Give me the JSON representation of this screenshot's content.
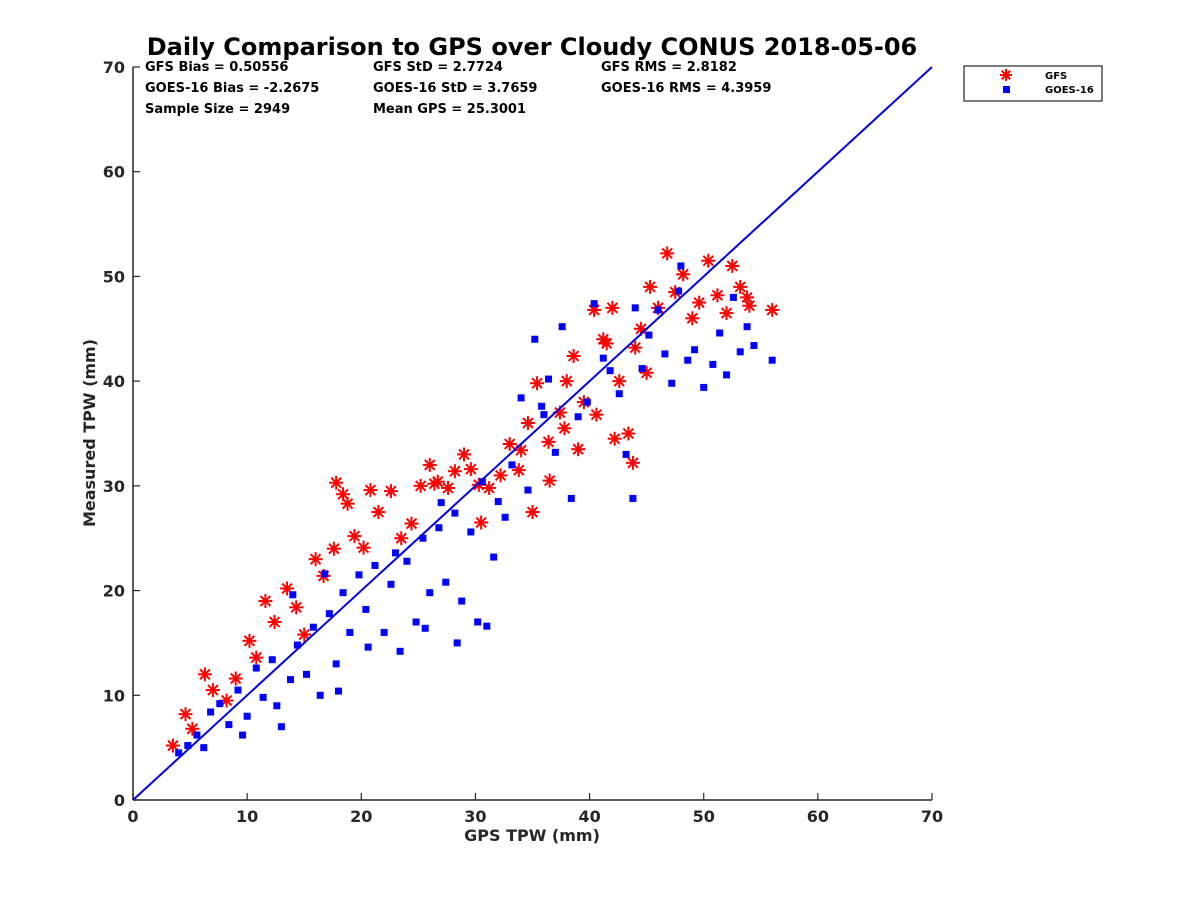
{
  "chart_data": {
    "type": "scatter",
    "title": "Daily Comparison to GPS over Cloudy CONUS 2018-05-06",
    "xlabel": "GPS TPW (mm)",
    "ylabel": "Measured TPW (mm)",
    "xlim": [
      0,
      70
    ],
    "ylim": [
      0,
      70
    ],
    "xticks": [
      0,
      10,
      20,
      30,
      40,
      50,
      60,
      70
    ],
    "yticks": [
      0,
      10,
      20,
      30,
      40,
      50,
      60,
      70
    ],
    "grid": false,
    "legend_position": "top-right",
    "stats": [
      [
        "GFS Bias = 0.50556",
        "GFS StD = 2.7724",
        "GFS RMS = 2.8182"
      ],
      [
        "GOES-16 Bias = -2.2675",
        "GOES-16 StD = 3.7659",
        "GOES-16 RMS = 4.3959"
      ],
      [
        "Sample Size = 2949",
        "Mean GPS = 25.3001"
      ]
    ],
    "reference_line": {
      "x": [
        0,
        70
      ],
      "y": [
        0,
        70
      ],
      "color": "#0000dd"
    },
    "series": [
      {
        "name": "GFS",
        "marker": "asterisk",
        "color": "#ff0000",
        "points": [
          [
            3.5,
            5.2
          ],
          [
            4.6,
            8.2
          ],
          [
            5.2,
            6.8
          ],
          [
            6.3,
            12.0
          ],
          [
            7.0,
            10.5
          ],
          [
            8.2,
            9.5
          ],
          [
            9.0,
            11.6
          ],
          [
            10.2,
            15.2
          ],
          [
            10.8,
            13.6
          ],
          [
            11.6,
            19.0
          ],
          [
            12.4,
            17.0
          ],
          [
            13.5,
            20.2
          ],
          [
            14.3,
            18.4
          ],
          [
            15.0,
            15.8
          ],
          [
            16.0,
            23.0
          ],
          [
            16.7,
            21.4
          ],
          [
            17.6,
            24.0
          ],
          [
            17.8,
            30.3
          ],
          [
            18.4,
            29.2
          ],
          [
            18.8,
            28.3
          ],
          [
            19.4,
            25.2
          ],
          [
            20.2,
            24.1
          ],
          [
            20.8,
            29.6
          ],
          [
            21.5,
            27.5
          ],
          [
            22.6,
            29.5
          ],
          [
            23.5,
            25.0
          ],
          [
            24.4,
            26.4
          ],
          [
            25.2,
            30.0
          ],
          [
            26.0,
            32.0
          ],
          [
            26.7,
            30.4
          ],
          [
            27.6,
            29.8
          ],
          [
            28.2,
            31.4
          ],
          [
            29.0,
            33.0
          ],
          [
            29.6,
            31.6
          ],
          [
            30.3,
            30.1
          ],
          [
            30.5,
            26.5
          ],
          [
            31.2,
            29.8
          ],
          [
            32.2,
            31.0
          ],
          [
            33.0,
            34.0
          ],
          [
            34.0,
            33.4
          ],
          [
            34.6,
            36.0
          ],
          [
            35.0,
            27.5
          ],
          [
            35.4,
            39.8
          ],
          [
            36.4,
            34.2
          ],
          [
            37.4,
            37.0
          ],
          [
            38.0,
            40.0
          ],
          [
            38.6,
            42.4
          ],
          [
            39.5,
            38.0
          ],
          [
            40.4,
            46.8
          ],
          [
            41.2,
            44.0
          ],
          [
            42.0,
            47.0
          ],
          [
            42.6,
            40.0
          ],
          [
            43.4,
            35.0
          ],
          [
            43.8,
            32.2
          ],
          [
            44.5,
            45.0
          ],
          [
            45.3,
            49.0
          ],
          [
            46.0,
            47.0
          ],
          [
            46.8,
            52.2
          ],
          [
            47.5,
            48.5
          ],
          [
            48.2,
            50.2
          ],
          [
            49.0,
            46.0
          ],
          [
            49.6,
            47.5
          ],
          [
            50.4,
            51.5
          ],
          [
            51.2,
            48.2
          ],
          [
            52.0,
            46.5
          ],
          [
            52.5,
            51.0
          ],
          [
            53.2,
            49.0
          ],
          [
            53.8,
            48.0
          ],
          [
            54.0,
            47.2
          ],
          [
            56.0,
            46.8
          ],
          [
            45.0,
            40.8
          ],
          [
            44.0,
            43.2
          ],
          [
            40.6,
            36.8
          ],
          [
            39.0,
            33.5
          ],
          [
            36.5,
            30.5
          ],
          [
            33.8,
            31.5
          ],
          [
            37.8,
            35.5
          ],
          [
            41.5,
            43.6
          ],
          [
            42.2,
            34.5
          ],
          [
            26.4,
            30.2
          ]
        ]
      },
      {
        "name": "GOES-16",
        "marker": "square",
        "color": "#0000ff",
        "points": [
          [
            4.0,
            4.5
          ],
          [
            4.8,
            5.2
          ],
          [
            5.6,
            6.2
          ],
          [
            6.2,
            5.0
          ],
          [
            6.8,
            8.4
          ],
          [
            7.6,
            9.2
          ],
          [
            8.4,
            7.2
          ],
          [
            9.2,
            10.5
          ],
          [
            10.0,
            8.0
          ],
          [
            10.8,
            12.6
          ],
          [
            11.4,
            9.8
          ],
          [
            12.2,
            13.4
          ],
          [
            13.0,
            7.0
          ],
          [
            13.8,
            11.5
          ],
          [
            14.4,
            14.8
          ],
          [
            15.2,
            12.0
          ],
          [
            15.8,
            16.5
          ],
          [
            16.4,
            10.0
          ],
          [
            17.2,
            17.8
          ],
          [
            17.8,
            13.0
          ],
          [
            18.4,
            19.8
          ],
          [
            19.0,
            16.0
          ],
          [
            19.8,
            21.5
          ],
          [
            20.4,
            18.2
          ],
          [
            21.2,
            22.4
          ],
          [
            22.0,
            16.0
          ],
          [
            22.6,
            20.6
          ],
          [
            23.4,
            14.2
          ],
          [
            24.0,
            22.8
          ],
          [
            24.8,
            17.0
          ],
          [
            25.4,
            25.0
          ],
          [
            26.0,
            19.8
          ],
          [
            26.8,
            26.0
          ],
          [
            27.4,
            20.8
          ],
          [
            28.2,
            27.4
          ],
          [
            28.8,
            19.0
          ],
          [
            29.6,
            25.6
          ],
          [
            30.2,
            17.0
          ],
          [
            31.0,
            16.6
          ],
          [
            32.0,
            28.5
          ],
          [
            32.6,
            27.0
          ],
          [
            33.2,
            32.0
          ],
          [
            34.0,
            38.4
          ],
          [
            34.6,
            29.6
          ],
          [
            35.2,
            44.0
          ],
          [
            35.8,
            37.6
          ],
          [
            36.4,
            40.2
          ],
          [
            37.0,
            33.2
          ],
          [
            37.6,
            45.2
          ],
          [
            38.4,
            28.8
          ],
          [
            39.0,
            36.6
          ],
          [
            39.8,
            38.0
          ],
          [
            40.4,
            47.4
          ],
          [
            41.2,
            42.2
          ],
          [
            41.8,
            41.0
          ],
          [
            42.6,
            38.8
          ],
          [
            43.2,
            33.0
          ],
          [
            43.8,
            28.8
          ],
          [
            44.6,
            41.2
          ],
          [
            45.2,
            44.4
          ],
          [
            46.0,
            46.8
          ],
          [
            46.6,
            42.6
          ],
          [
            47.2,
            39.8
          ],
          [
            47.8,
            48.6
          ],
          [
            48.6,
            42.0
          ],
          [
            49.2,
            43.0
          ],
          [
            50.0,
            39.4
          ],
          [
            50.8,
            41.6
          ],
          [
            51.4,
            44.6
          ],
          [
            52.0,
            40.6
          ],
          [
            52.6,
            48.0
          ],
          [
            53.2,
            42.8
          ],
          [
            53.8,
            45.2
          ],
          [
            54.4,
            43.4
          ],
          [
            56.0,
            42.0
          ],
          [
            31.6,
            23.2
          ],
          [
            28.4,
            15.0
          ],
          [
            25.6,
            16.4
          ],
          [
            20.6,
            14.6
          ],
          [
            18.0,
            10.4
          ],
          [
            12.6,
            9.0
          ],
          [
            9.6,
            6.2
          ],
          [
            14.0,
            19.6
          ],
          [
            16.8,
            21.6
          ],
          [
            23.0,
            23.6
          ],
          [
            27.0,
            28.4
          ],
          [
            30.6,
            30.4
          ],
          [
            36.0,
            36.8
          ],
          [
            44.0,
            47.0
          ],
          [
            48.0,
            51.0
          ]
        ]
      }
    ]
  }
}
